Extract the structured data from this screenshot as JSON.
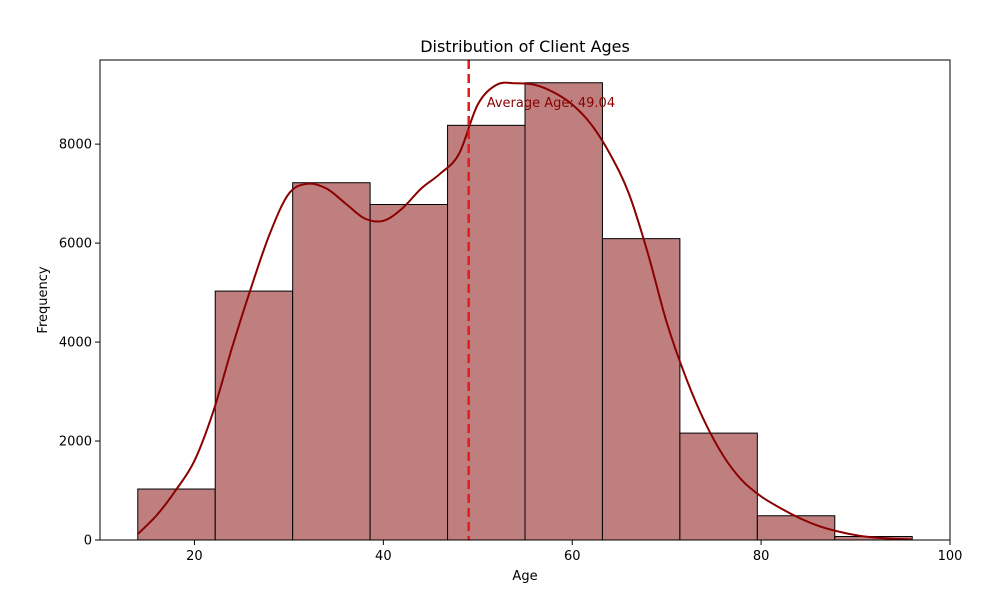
{
  "chart_data": {
    "type": "bar",
    "title": "Distribution of Client Ages",
    "xlabel": "Age",
    "ylabel": "Frequency",
    "xlim": [
      10,
      100
    ],
    "ylim": [
      0,
      9700
    ],
    "x_ticks": [
      20,
      40,
      60,
      80,
      100
    ],
    "y_ticks": [
      0,
      2000,
      4000,
      6000,
      8000
    ],
    "bin_edges": [
      14,
      22.2,
      30.4,
      38.6,
      46.8,
      55,
      63.2,
      71.4,
      79.6,
      87.8,
      96
    ],
    "values": [
      1030,
      5030,
      7220,
      6780,
      8380,
      9240,
      6090,
      2160,
      490,
      70
    ],
    "kde": {
      "x": [
        14,
        16,
        18,
        20,
        22,
        24,
        26,
        28,
        30,
        32,
        34,
        36,
        38,
        40,
        42,
        44,
        46,
        48,
        50,
        52,
        54,
        56,
        58,
        60,
        62,
        64,
        66,
        68,
        70,
        72,
        74,
        76,
        78,
        80,
        82,
        84,
        86,
        88,
        90,
        92,
        94,
        96
      ],
      "y": [
        120,
        500,
        1000,
        1600,
        2600,
        3900,
        5100,
        6200,
        7000,
        7200,
        7100,
        6800,
        6500,
        6450,
        6700,
        7100,
        7400,
        7800,
        8800,
        9200,
        9230,
        9200,
        9050,
        8800,
        8400,
        7800,
        7000,
        5800,
        4400,
        3300,
        2400,
        1700,
        1200,
        880,
        650,
        450,
        290,
        180,
        100,
        50,
        25,
        10
      ]
    },
    "mean_line": {
      "value": 49.04,
      "label": "Average Age: 49.04",
      "color": "#e41a1c"
    },
    "bar_color": "#bf7f7f",
    "bar_edge_color": "#000000",
    "kde_color": "#8b0000",
    "annotation_color": "#8b0000",
    "grid": false
  }
}
